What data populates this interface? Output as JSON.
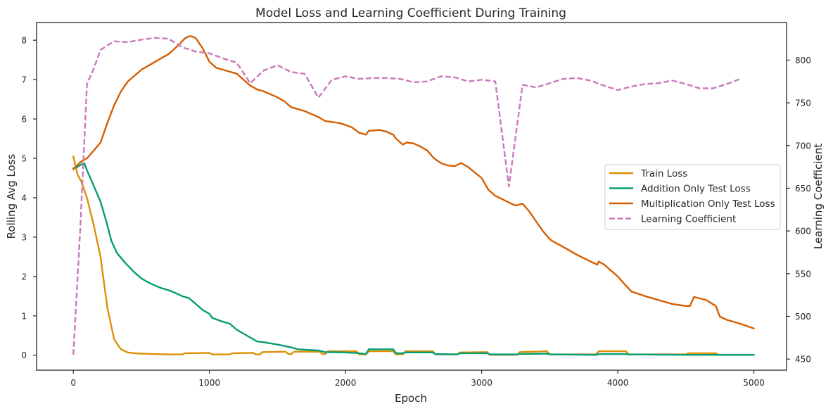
{
  "chart_data": {
    "type": "line",
    "title": "Model Loss and Learning Coefficient During Training",
    "xlabel": "Epoch",
    "ylabel_left": "Rolling Avg Loss",
    "ylabel_right": "Learning Coefficient",
    "xlim": [
      -270,
      5240
    ],
    "ylim_left": [
      -0.38,
      8.45
    ],
    "ylim_right": [
      437,
      844
    ],
    "x_ticks": [
      0,
      1000,
      2000,
      3000,
      4000,
      5000
    ],
    "y_ticks_left": [
      0,
      1,
      2,
      3,
      4,
      5,
      6,
      7,
      8
    ],
    "y_ticks_right": [
      450,
      500,
      550,
      600,
      650,
      700,
      750,
      800
    ],
    "grid": false,
    "legend_position": "center-right",
    "series": [
      {
        "name": "Train Loss",
        "axis": "left",
        "color": "#de8f05",
        "dash": "solid",
        "x": [
          0,
          30,
          60,
          100,
          150,
          200,
          250,
          300,
          350,
          400,
          450,
          500,
          600,
          700,
          800,
          820,
          1000,
          1020,
          1150,
          1170,
          1320,
          1340,
          1370,
          1390,
          1560,
          1580,
          1600,
          1620,
          1810,
          1830,
          1850,
          1870,
          2080,
          2100,
          2150,
          2170,
          2350,
          2370,
          2420,
          2440,
          2640,
          2660,
          2820,
          2840,
          3040,
          3060,
          3260,
          3280,
          3480,
          3500,
          3840,
          3860,
          4060,
          4080,
          4500,
          4520,
          4720,
          4740,
          5000
        ],
        "y": [
          5.05,
          4.6,
          4.4,
          4.0,
          3.3,
          2.5,
          1.2,
          0.4,
          0.15,
          0.07,
          0.05,
          0.04,
          0.03,
          0.02,
          0.02,
          0.05,
          0.06,
          0.02,
          0.02,
          0.05,
          0.06,
          0.02,
          0.02,
          0.08,
          0.09,
          0.03,
          0.03,
          0.09,
          0.09,
          0.03,
          0.03,
          0.1,
          0.1,
          0.02,
          0.02,
          0.1,
          0.1,
          0.02,
          0.02,
          0.1,
          0.1,
          0.02,
          0.02,
          0.07,
          0.08,
          0.01,
          0.01,
          0.08,
          0.1,
          0.02,
          0.02,
          0.1,
          0.1,
          0.02,
          0.02,
          0.05,
          0.05,
          0.01,
          0.01
        ]
      },
      {
        "name": "Addition Only Test Loss",
        "axis": "left",
        "color": "#029e73",
        "dash": "solid",
        "x": [
          0,
          30,
          60,
          80,
          100,
          150,
          200,
          250,
          280,
          320,
          380,
          450,
          500,
          550,
          600,
          650,
          700,
          750,
          800,
          850,
          900,
          950,
          1000,
          1020,
          1100,
          1150,
          1200,
          1250,
          1300,
          1350,
          1400,
          1500,
          1600,
          1650,
          1700,
          1800,
          1850,
          2000,
          2100,
          2150,
          2170,
          2350,
          2370,
          2420,
          2440,
          2640,
          2660,
          2820,
          2840,
          3040,
          3060,
          3260,
          3280,
          3480,
          3500,
          3840,
          3860,
          4060,
          4080,
          4500,
          4700,
          5000
        ],
        "y": [
          4.75,
          4.78,
          4.85,
          4.88,
          4.7,
          4.3,
          3.9,
          3.3,
          2.9,
          2.6,
          2.35,
          2.1,
          1.95,
          1.85,
          1.77,
          1.7,
          1.65,
          1.58,
          1.5,
          1.45,
          1.3,
          1.15,
          1.05,
          0.95,
          0.85,
          0.8,
          0.65,
          0.55,
          0.45,
          0.35,
          0.33,
          0.27,
          0.2,
          0.15,
          0.14,
          0.12,
          0.08,
          0.07,
          0.05,
          0.03,
          0.15,
          0.15,
          0.05,
          0.05,
          0.07,
          0.07,
          0.03,
          0.02,
          0.05,
          0.05,
          0.02,
          0.02,
          0.03,
          0.04,
          0.02,
          0.01,
          0.03,
          0.03,
          0.02,
          0.01,
          0.01,
          0.01
        ]
      },
      {
        "name": "Multiplication Only Test Loss",
        "axis": "left",
        "color": "#d55e00",
        "dash": "solid",
        "x": [
          0,
          50,
          100,
          150,
          200,
          250,
          300,
          350,
          400,
          450,
          500,
          600,
          700,
          780,
          820,
          850,
          870,
          900,
          950,
          1000,
          1050,
          1100,
          1200,
          1250,
          1300,
          1350,
          1400,
          1500,
          1550,
          1600,
          1700,
          1800,
          1850,
          1950,
          2000,
          2050,
          2100,
          2150,
          2170,
          2250,
          2300,
          2350,
          2370,
          2420,
          2450,
          2500,
          2550,
          2600,
          2650,
          2700,
          2750,
          2800,
          2850,
          2900,
          3000,
          3050,
          3100,
          3200,
          3250,
          3300,
          3350,
          3400,
          3450,
          3500,
          3520,
          3600,
          3700,
          3800,
          3850,
          3860,
          3900,
          4000,
          4050,
          4100,
          4200,
          4300,
          4400,
          4500,
          4530,
          4560,
          4650,
          4720,
          4750,
          4800,
          4900,
          5000
        ],
        "y": [
          4.72,
          4.9,
          5.0,
          5.2,
          5.4,
          5.9,
          6.35,
          6.7,
          6.95,
          7.1,
          7.25,
          7.45,
          7.65,
          7.9,
          8.05,
          8.1,
          8.1,
          8.05,
          7.8,
          7.45,
          7.3,
          7.25,
          7.15,
          7.0,
          6.85,
          6.75,
          6.7,
          6.55,
          6.45,
          6.3,
          6.2,
          6.05,
          5.95,
          5.9,
          5.85,
          5.78,
          5.65,
          5.6,
          5.7,
          5.72,
          5.68,
          5.6,
          5.5,
          5.35,
          5.4,
          5.38,
          5.3,
          5.2,
          5.0,
          4.88,
          4.82,
          4.8,
          4.88,
          4.78,
          4.5,
          4.2,
          4.05,
          3.88,
          3.8,
          3.85,
          3.65,
          3.4,
          3.15,
          2.95,
          2.9,
          2.75,
          2.55,
          2.38,
          2.3,
          2.38,
          2.3,
          2.0,
          1.8,
          1.62,
          1.5,
          1.4,
          1.3,
          1.25,
          1.25,
          1.48,
          1.4,
          1.25,
          0.98,
          0.9,
          0.8,
          0.68
        ]
      },
      {
        "name": "Learning Coefficient",
        "axis": "right",
        "color": "#cc78bc",
        "dash": "dashed",
        "x": [
          0,
          50,
          100,
          150,
          200,
          300,
          400,
          500,
          600,
          700,
          800,
          900,
          1000,
          1100,
          1200,
          1300,
          1400,
          1500,
          1600,
          1700,
          1800,
          1900,
          2000,
          2100,
          2200,
          2300,
          2400,
          2500,
          2600,
          2700,
          2800,
          2900,
          3000,
          3100,
          3200,
          3300,
          3400,
          3500,
          3600,
          3700,
          3800,
          3900,
          4000,
          4100,
          4200,
          4300,
          4400,
          4500,
          4600,
          4700,
          4800,
          4900
        ],
        "y": [
          455,
          600,
          772,
          790,
          812,
          822,
          821,
          824,
          826,
          825,
          815,
          810,
          808,
          802,
          797,
          773,
          788,
          794,
          786,
          784,
          756,
          777,
          781,
          778,
          779,
          779,
          778,
          774,
          775,
          781,
          780,
          775,
          777,
          775,
          652,
          771,
          768,
          773,
          778,
          779,
          776,
          770,
          765,
          769,
          772,
          773,
          776,
          772,
          767,
          767,
          772,
          778
        ]
      }
    ]
  }
}
